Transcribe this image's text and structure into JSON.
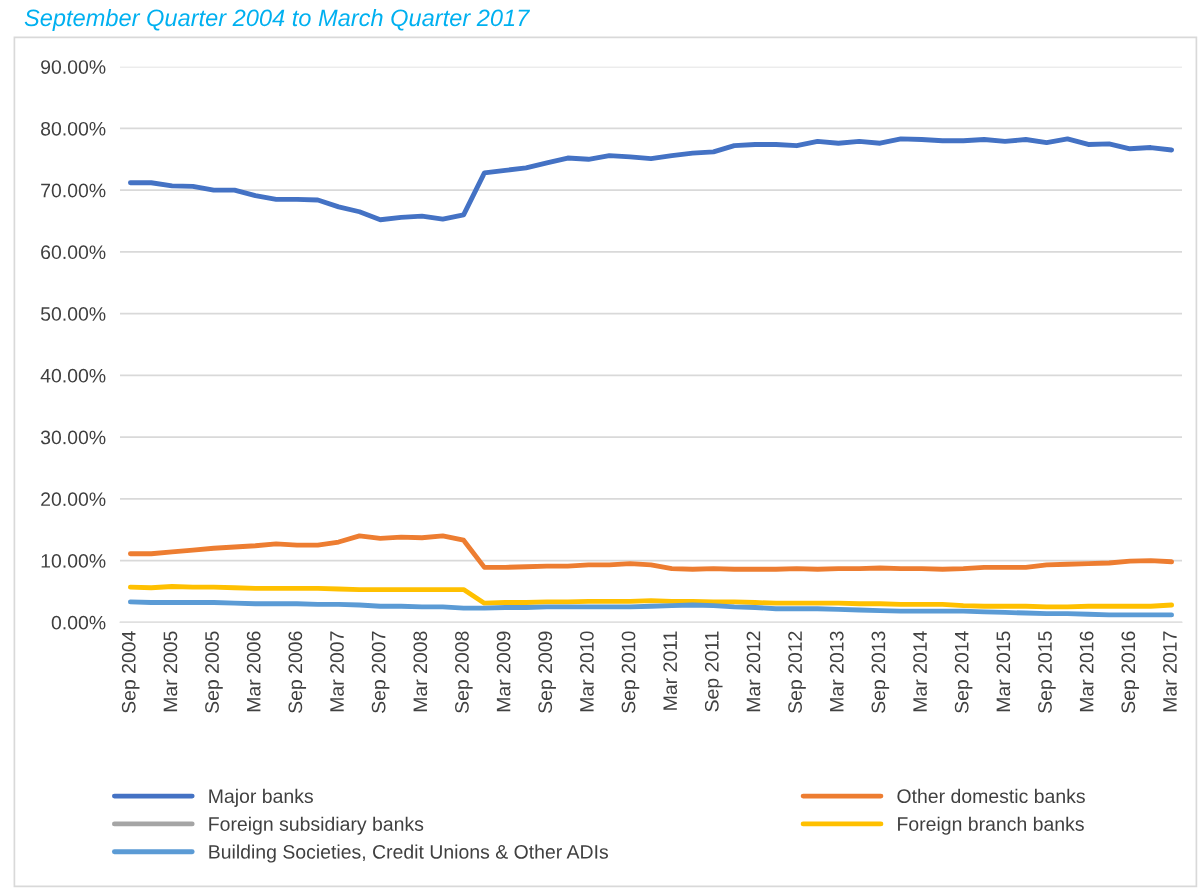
{
  "chart_data": {
    "type": "line",
    "title": "September Quarter 2004 to March Quarter 2017",
    "categories": [
      "Sep 2004",
      null,
      "Mar 2005",
      null,
      "Sep 2005",
      null,
      "Mar 2006",
      null,
      "Sep 2006",
      null,
      "Mar 2007",
      null,
      "Sep 2007",
      null,
      "Mar 2008",
      null,
      "Sep 2008",
      null,
      "Mar 2009",
      null,
      "Sep 2009",
      null,
      "Mar 2010",
      null,
      "Sep 2010",
      null,
      "Mar 2011",
      null,
      "Sep 2011",
      null,
      "Mar 2012",
      null,
      "Sep 2012",
      null,
      "Mar 2013",
      null,
      "Sep 2013",
      null,
      "Mar 2014",
      null,
      "Sep 2014",
      null,
      "Mar 2015",
      null,
      "Sep 2015",
      null,
      "Mar 2016",
      null,
      "Sep 2016",
      null,
      "Mar 2017"
    ],
    "series": [
      {
        "name": "Major banks",
        "color": "#4472c4",
        "values": [
          71.2,
          71.2,
          70.7,
          70.6,
          70.0,
          70.0,
          69.1,
          68.5,
          68.5,
          68.4,
          67.3,
          66.5,
          65.2,
          65.6,
          65.8,
          65.3,
          66.0,
          72.8,
          73.2,
          73.6,
          74.4,
          75.2,
          75.0,
          75.6,
          75.4,
          75.1,
          75.6,
          76.0,
          76.2,
          77.2,
          77.4,
          77.4,
          77.2,
          77.9,
          77.6,
          77.9,
          77.6,
          78.3,
          78.2,
          78.0,
          78.0,
          78.2,
          77.9,
          78.2,
          77.7,
          78.3,
          77.4,
          77.5,
          76.7,
          76.9,
          76.5
        ]
      },
      {
        "name": "Other domestic banks",
        "color": "#ed7d31",
        "values": [
          11.1,
          11.1,
          11.4,
          11.7,
          12.0,
          12.2,
          12.4,
          12.7,
          12.5,
          12.5,
          13.0,
          14.0,
          13.6,
          13.8,
          13.7,
          14.0,
          13.3,
          8.9,
          8.9,
          9.0,
          9.1,
          9.1,
          9.3,
          9.3,
          9.5,
          9.3,
          8.7,
          8.6,
          8.7,
          8.6,
          8.6,
          8.6,
          8.7,
          8.6,
          8.7,
          8.7,
          8.8,
          8.7,
          8.7,
          8.6,
          8.7,
          8.9,
          8.9,
          8.9,
          9.3,
          9.4,
          9.5,
          9.6,
          9.9,
          10.0,
          9.8
        ]
      },
      {
        "name": "Foreign subsidiary banks",
        "color": "#a5a5a5",
        "values": [
          null,
          null,
          null,
          null,
          null,
          null,
          null,
          null,
          null,
          null,
          null,
          null,
          null,
          null,
          null,
          null,
          null,
          null,
          null,
          null,
          null,
          null,
          null,
          null,
          null,
          null,
          null,
          null,
          null,
          null,
          null,
          null,
          null,
          null,
          null,
          null,
          null,
          null,
          null,
          null,
          null,
          null,
          null,
          null,
          null,
          null,
          null,
          null,
          null,
          null,
          null
        ]
      },
      {
        "name": "Foreign branch banks",
        "color": "#ffc000",
        "values": [
          5.7,
          5.6,
          5.8,
          5.7,
          5.7,
          5.6,
          5.5,
          5.5,
          5.5,
          5.5,
          5.4,
          5.3,
          5.3,
          5.3,
          5.3,
          5.3,
          5.3,
          3.1,
          3.2,
          3.2,
          3.3,
          3.3,
          3.4,
          3.4,
          3.4,
          3.5,
          3.4,
          3.4,
          3.3,
          3.3,
          3.2,
          3.1,
          3.1,
          3.1,
          3.1,
          3.0,
          3.0,
          2.9,
          2.9,
          2.9,
          2.7,
          2.6,
          2.6,
          2.6,
          2.5,
          2.5,
          2.6,
          2.6,
          2.6,
          2.6,
          2.8
        ]
      },
      {
        "name": "Building Societies, Credit Unions & Other ADIs",
        "color": "#5b9bd5",
        "values": [
          3.3,
          3.2,
          3.2,
          3.2,
          3.2,
          3.1,
          3.0,
          3.0,
          3.0,
          2.9,
          2.9,
          2.8,
          2.6,
          2.6,
          2.5,
          2.5,
          2.3,
          2.3,
          2.4,
          2.4,
          2.5,
          2.5,
          2.5,
          2.5,
          2.5,
          2.6,
          2.7,
          2.8,
          2.7,
          2.5,
          2.4,
          2.2,
          2.2,
          2.2,
          2.1,
          2.0,
          1.9,
          1.8,
          1.8,
          1.8,
          1.8,
          1.7,
          1.6,
          1.5,
          1.4,
          1.4,
          1.3,
          1.2,
          1.2,
          1.2,
          1.2
        ]
      }
    ],
    "ylim": [
      0,
      90
    ],
    "yticks": [
      {
        "value": 0,
        "label": "0.00%"
      },
      {
        "value": 10,
        "label": "10.00%"
      },
      {
        "value": 20,
        "label": "20.00%"
      },
      {
        "value": 30,
        "label": "30.00%"
      },
      {
        "value": 40,
        "label": "40.00%"
      },
      {
        "value": 50,
        "label": "50.00%"
      },
      {
        "value": 60,
        "label": "60.00%"
      },
      {
        "value": 70,
        "label": "70.00%"
      },
      {
        "value": 80,
        "label": "80.00%"
      },
      {
        "value": 90,
        "label": "90.00%"
      }
    ],
    "grid": "y",
    "legend": "bottom",
    "marker": "none",
    "line_style": "solid"
  }
}
